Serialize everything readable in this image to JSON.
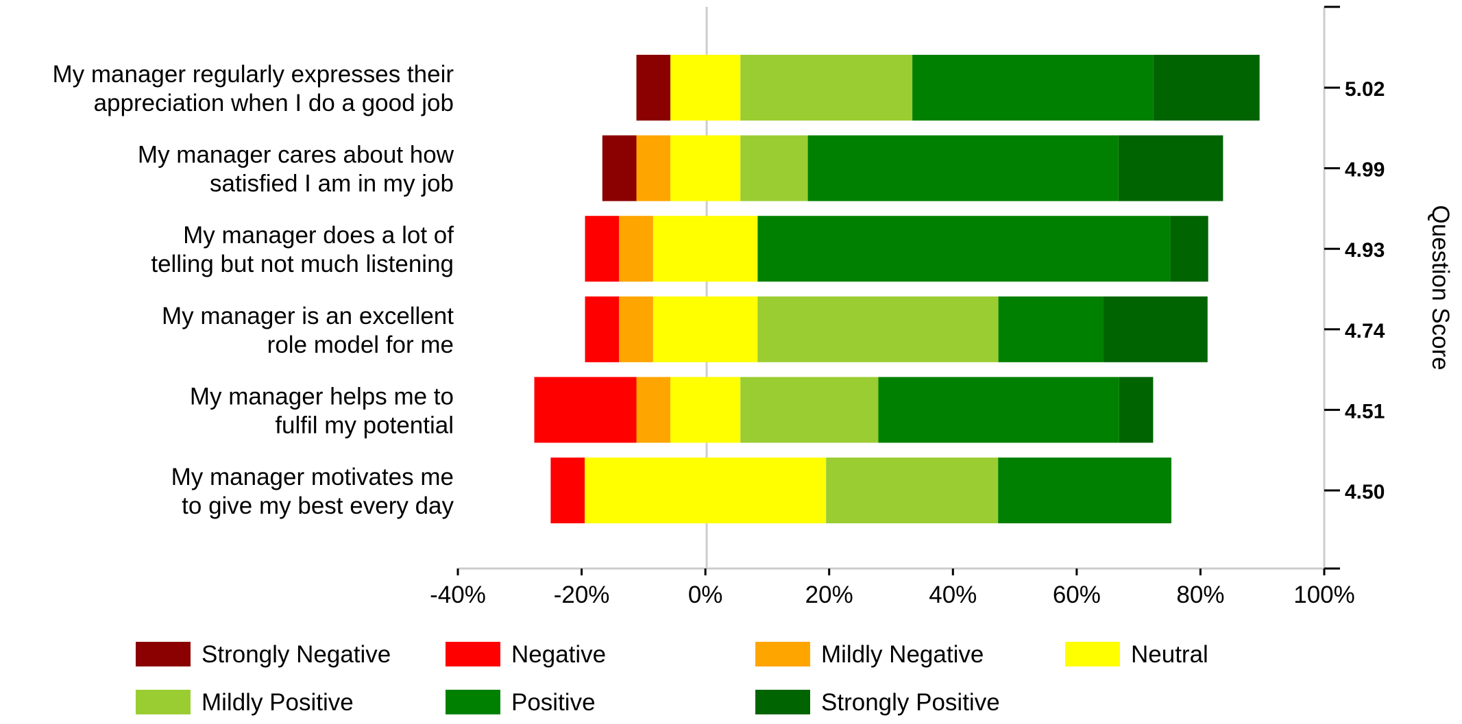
{
  "chart_data": {
    "type": "bar",
    "orientation": "horizontal",
    "stacked": true,
    "diverging": true,
    "title": "",
    "xlabel": "",
    "y2label": "Question Score",
    "xlim": [
      -40,
      100
    ],
    "xticks": [
      -40,
      -20,
      0,
      20,
      40,
      60,
      80,
      100
    ],
    "xtick_labels": [
      "-40%",
      "-20%",
      "0%",
      "20%",
      "40%",
      "60%",
      "80%",
      "100%"
    ],
    "grid": false,
    "legend_position": "bottom",
    "categories": [
      [
        "My manager regularly expresses their",
        "appreciation when I do a good job"
      ],
      [
        "My manager cares about how",
        "satisfied I am in my job"
      ],
      [
        "My manager does a lot of",
        "telling but not much listening"
      ],
      [
        "My manager is an excellent",
        "role model for me"
      ],
      [
        "My manager helps me to",
        "fulfil my potential"
      ],
      [
        "My manager motivates me",
        "to give my best every day"
      ]
    ],
    "question_scores": [
      "5.02",
      "4.99",
      "4.93",
      "4.74",
      "4.51",
      "4.50"
    ],
    "series": [
      {
        "name": "Strongly Negative",
        "color": "#8b0000",
        "values": [
          5.5,
          5.5,
          0,
          0,
          0,
          0
        ]
      },
      {
        "name": "Negative",
        "color": "#ff0000",
        "values": [
          0,
          0,
          5.5,
          5.5,
          16.5,
          5.5
        ]
      },
      {
        "name": "Mildly Negative",
        "color": "#ffa500",
        "values": [
          0,
          5.5,
          5.5,
          5.5,
          5.5,
          0
        ]
      },
      {
        "name": "Neutral",
        "color": "#ffff00",
        "values": [
          11.3,
          11.3,
          16.9,
          16.9,
          11.3,
          39.0
        ]
      },
      {
        "name": "Mildly Positive",
        "color": "#9acd32",
        "values": [
          27.8,
          10.9,
          0,
          38.9,
          22.3,
          27.8
        ]
      },
      {
        "name": "Positive",
        "color": "#008000",
        "values": [
          38.9,
          50.2,
          66.7,
          16.9,
          38.9,
          28.0
        ]
      },
      {
        "name": "Strongly Positive",
        "color": "#006400",
        "values": [
          17.2,
          16.9,
          6.1,
          16.9,
          5.5,
          0
        ]
      }
    ]
  }
}
